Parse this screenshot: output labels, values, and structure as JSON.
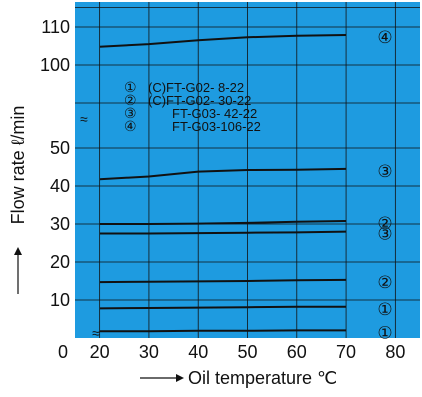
{
  "chart_data": {
    "type": "line",
    "xlabel": "Oil temperature",
    "xlabel_unit": "℃",
    "ylabel": "Flow rate",
    "ylabel_unit": "ℓ/min",
    "x_ticks": [
      "0",
      "20",
      "30",
      "40",
      "50",
      "60",
      "70",
      "80"
    ],
    "y_ticks": [
      "10",
      "20",
      "30",
      "40",
      "50",
      "100",
      "110"
    ],
    "xlim": [
      15,
      85
    ],
    "y_broken_axis": true,
    "grid": true,
    "background_color": "#1e9be0",
    "line_color": "#111111",
    "legend": [
      {
        "mark": "①",
        "text": "(C)FT-G02-  8-22"
      },
      {
        "mark": "②",
        "text": "(C)FT-G02- 30-22"
      },
      {
        "mark": "③",
        "text": "FT-G03- 42-22"
      },
      {
        "mark": "④",
        "text": "FT-G03-106-22"
      }
    ],
    "series": [
      {
        "label": "④",
        "x": [
          20,
          30,
          40,
          50,
          60,
          70
        ],
        "y": [
          104.8,
          105.5,
          106.5,
          107.3,
          107.7,
          107.9
        ]
      },
      {
        "label": "③",
        "x": [
          20,
          30,
          40,
          50,
          60,
          70
        ],
        "y": [
          41.8,
          42.5,
          43.8,
          44.2,
          44.3,
          44.5
        ]
      },
      {
        "label": "②",
        "x": [
          20,
          30,
          40,
          50,
          60,
          70
        ],
        "y": [
          30.0,
          30.0,
          30.1,
          30.3,
          30.6,
          30.8
        ]
      },
      {
        "label": "③",
        "x": [
          20,
          30,
          40,
          50,
          60,
          70
        ],
        "y": [
          27.5,
          27.5,
          27.6,
          27.7,
          27.8,
          28.0
        ]
      },
      {
        "label": "②",
        "x": [
          20,
          30,
          40,
          50,
          60,
          70
        ],
        "y": [
          14.7,
          14.8,
          14.9,
          15.0,
          15.2,
          15.3
        ]
      },
      {
        "label": "①",
        "x": [
          20,
          30,
          40,
          50,
          60,
          70
        ],
        "y": [
          7.8,
          7.9,
          8.0,
          8.1,
          8.2,
          8.2
        ]
      },
      {
        "label": "①",
        "x": [
          20,
          30,
          40,
          50,
          60,
          70
        ],
        "y": [
          1.8,
          1.8,
          1.9,
          1.9,
          2.0,
          2.0
        ]
      }
    ]
  }
}
